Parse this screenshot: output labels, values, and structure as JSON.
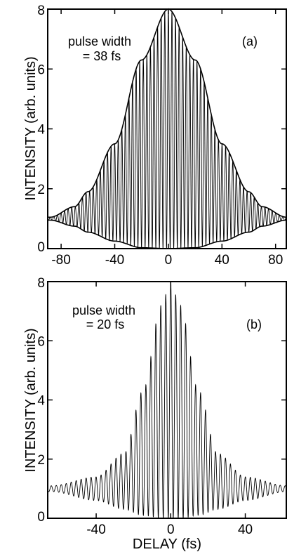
{
  "chart_data": [
    {
      "panel": "a",
      "type": "line",
      "panel_label": "(a)",
      "annotation_lines": [
        "pulse width",
        "= 38 fs"
      ],
      "xlabel": "",
      "ylabel": "INTENSITY (arb. units)",
      "xlim": [
        -90,
        88
      ],
      "ylim": [
        0,
        8
      ],
      "xticks": [
        -80,
        -40,
        0,
        40,
        80
      ],
      "yticks": [
        0,
        2,
        4,
        6,
        8
      ],
      "grid": false,
      "series": [
        {
          "kind": "interferometric_autocorrelation",
          "fringe_period_fs": 2.67,
          "peak": 8,
          "baseline": 1,
          "pulse_width_fs": 38,
          "samples": [
            {
              "x": -88,
              "y_upper": 1.05,
              "y_lower": 0.95
            },
            {
              "x": -70,
              "y_upper": 1.4,
              "y_lower": 0.75
            },
            {
              "x": -60,
              "y_upper": 1.9,
              "y_lower": 0.55
            },
            {
              "x": -40,
              "y_upper": 3.5,
              "y_lower": 0.25
            },
            {
              "x": -20,
              "y_upper": 6.3,
              "y_lower": 0.03
            },
            {
              "x": 0,
              "y_upper": 8.0,
              "y_lower": 0.0
            },
            {
              "x": 20,
              "y_upper": 6.3,
              "y_lower": 0.03
            },
            {
              "x": 40,
              "y_upper": 3.5,
              "y_lower": 0.25
            },
            {
              "x": 60,
              "y_upper": 1.9,
              "y_lower": 0.55
            },
            {
              "x": 70,
              "y_upper": 1.4,
              "y_lower": 0.75
            },
            {
              "x": 88,
              "y_upper": 1.05,
              "y_lower": 0.95
            }
          ]
        },
        {
          "kind": "envelope_upper_fit"
        },
        {
          "kind": "envelope_lower_fit"
        }
      ]
    },
    {
      "panel": "b",
      "type": "line",
      "panel_label": "(b)",
      "annotation_lines": [
        "pulse width",
        "= 20 fs"
      ],
      "xlabel": "DELAY (fs)",
      "ylabel": "INTENSITY (arb. units)",
      "xlim": [
        -66,
        62
      ],
      "ylim": [
        0,
        8
      ],
      "xticks": [
        -40,
        0,
        40
      ],
      "yticks": [
        0,
        2,
        4,
        6,
        8
      ],
      "grid": false,
      "series": [
        {
          "kind": "interferometric_autocorrelation",
          "fringe_period_fs": 2.67,
          "peak": 8,
          "baseline": 1,
          "pulse_width_fs": 20,
          "samples": [
            {
              "x": -64,
              "y_upper": 1.1,
              "y_lower": 0.9
            },
            {
              "x": -40,
              "y_upper": 1.4,
              "y_lower": 0.6
            },
            {
              "x": -25,
              "y_upper": 2.2,
              "y_lower": 0.3
            },
            {
              "x": -15,
              "y_upper": 4.3,
              "y_lower": 0.1
            },
            {
              "x": -5,
              "y_upper": 7.2,
              "y_lower": 0.0
            },
            {
              "x": 0,
              "y_upper": 8.0,
              "y_lower": 0.0
            },
            {
              "x": 5,
              "y_upper": 7.2,
              "y_lower": 0.0
            },
            {
              "x": 15,
              "y_upper": 4.3,
              "y_lower": 0.1
            },
            {
              "x": 25,
              "y_upper": 2.2,
              "y_lower": 0.3
            },
            {
              "x": 40,
              "y_upper": 1.4,
              "y_lower": 0.6
            },
            {
              "x": 62,
              "y_upper": 1.1,
              "y_lower": 0.9
            }
          ]
        }
      ]
    }
  ]
}
